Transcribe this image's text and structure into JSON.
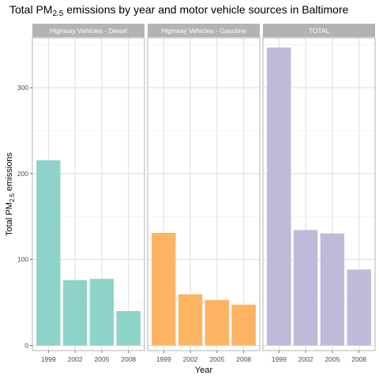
{
  "chart_data": {
    "type": "bar",
    "title": {
      "pre": "Total PM",
      "sub": "2.5",
      "post": " emissions by year and motor vehicle sources in Baltimore"
    },
    "xlabel": "Year",
    "ylabel": {
      "pre": "Total PM",
      "sub": "2.5",
      "post": " emissions"
    },
    "categories": [
      "1999",
      "2002",
      "2005",
      "2008"
    ],
    "ylim": [
      -6,
      358
    ],
    "yticks": [
      0,
      100,
      200,
      300
    ],
    "grid": true,
    "legend": "none",
    "panels": [
      {
        "name": "Highway Vehicles - Diesel",
        "color": "#8dd3c7",
        "values": [
          215.5,
          76.0,
          77.5,
          40.0
        ]
      },
      {
        "name": "Highway Vehicles - Gasoline",
        "color": "#fdb462",
        "values": [
          131.0,
          59.5,
          53.0,
          47.5
        ]
      },
      {
        "name": "TOTAL",
        "color": "#bebada",
        "values": [
          346.8,
          134.3,
          130.4,
          88.3
        ]
      }
    ]
  }
}
